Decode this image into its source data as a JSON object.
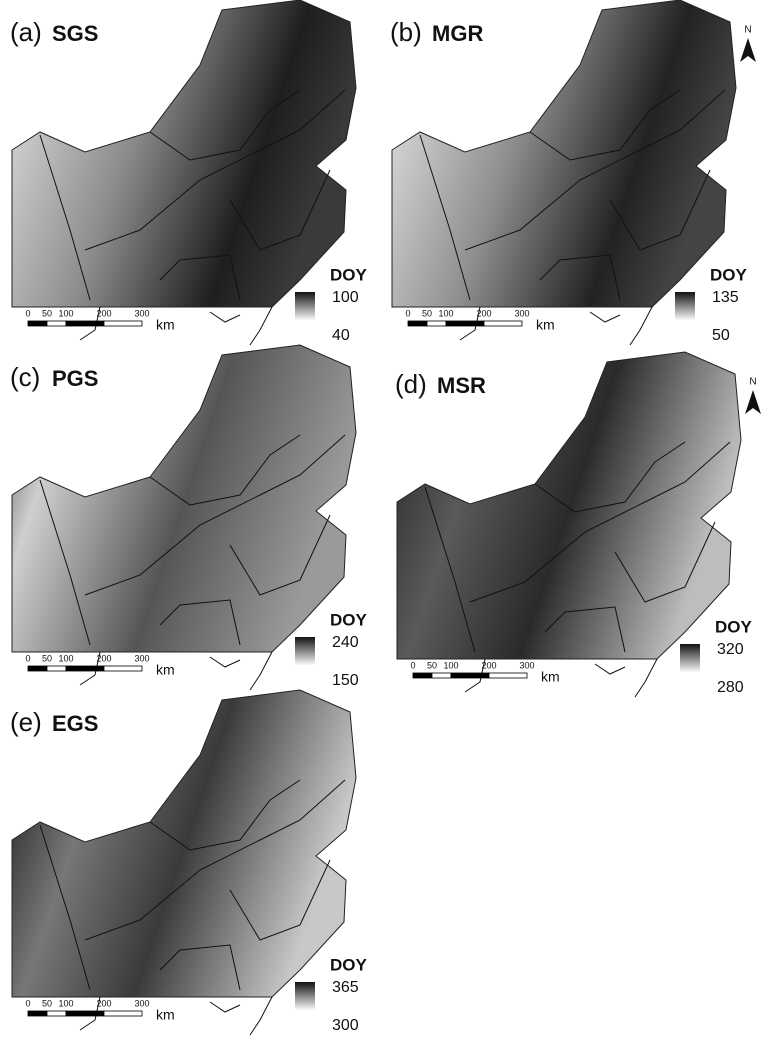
{
  "panels": [
    {
      "label": "(a)",
      "name": "SGS",
      "legend_title": "DOY",
      "legend_max": 100,
      "legend_min": 40,
      "scale_ticks": [
        0,
        50,
        100,
        200,
        300
      ],
      "scale_unit": "km"
    },
    {
      "label": "(b)",
      "name": "MGR",
      "legend_title": "DOY",
      "legend_max": 135,
      "legend_min": 50,
      "scale_ticks": [
        0,
        50,
        100,
        200,
        300
      ],
      "scale_unit": "km",
      "north_label": "N"
    },
    {
      "label": "(c)",
      "name": "PGS",
      "legend_title": "DOY",
      "legend_max": 240,
      "legend_min": 150,
      "scale_ticks": [
        0,
        50,
        100,
        200,
        300
      ],
      "scale_unit": "km"
    },
    {
      "label": "(d)",
      "name": "MSR",
      "legend_title": "DOY",
      "legend_max": 320,
      "legend_min": 280,
      "scale_ticks": [
        0,
        50,
        100,
        200,
        300
      ],
      "scale_unit": "km",
      "north_label": "N"
    },
    {
      "label": "(e)",
      "name": "EGS",
      "legend_title": "DOY",
      "legend_max": 365,
      "legend_min": 300,
      "scale_ticks": [
        0,
        50,
        100,
        200,
        300
      ],
      "scale_unit": "km"
    }
  ]
}
